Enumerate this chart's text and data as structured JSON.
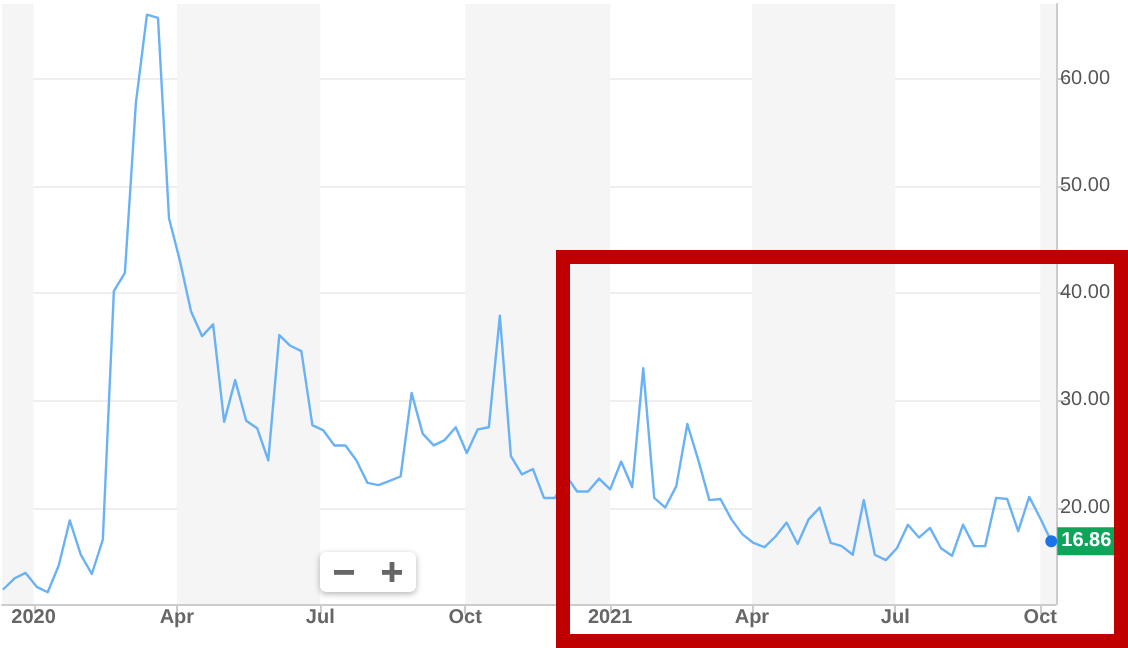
{
  "chart_data": {
    "type": "line",
    "x": [
      "2019-12-13",
      "2019-12-20",
      "2019-12-27",
      "2020-01-03",
      "2020-01-10",
      "2020-01-17",
      "2020-01-24",
      "2020-01-31",
      "2020-02-07",
      "2020-02-14",
      "2020-02-21",
      "2020-02-28",
      "2020-03-06",
      "2020-03-13",
      "2020-03-20",
      "2020-03-27",
      "2020-04-03",
      "2020-04-10",
      "2020-04-17",
      "2020-04-24",
      "2020-05-01",
      "2020-05-08",
      "2020-05-15",
      "2020-05-22",
      "2020-05-29",
      "2020-06-05",
      "2020-06-12",
      "2020-06-19",
      "2020-06-26",
      "2020-07-03",
      "2020-07-10",
      "2020-07-17",
      "2020-07-24",
      "2020-07-31",
      "2020-08-07",
      "2020-08-14",
      "2020-08-21",
      "2020-08-28",
      "2020-09-04",
      "2020-09-11",
      "2020-09-18",
      "2020-09-25",
      "2020-10-02",
      "2020-10-09",
      "2020-10-16",
      "2020-10-23",
      "2020-10-30",
      "2020-11-06",
      "2020-11-13",
      "2020-11-20",
      "2020-11-27",
      "2020-12-04",
      "2020-12-11",
      "2020-12-18",
      "2020-12-25",
      "2021-01-01",
      "2021-01-08",
      "2021-01-15",
      "2021-01-22",
      "2021-01-29",
      "2021-02-05",
      "2021-02-12",
      "2021-02-19",
      "2021-02-26",
      "2021-03-05",
      "2021-03-12",
      "2021-03-19",
      "2021-03-26",
      "2021-04-02",
      "2021-04-09",
      "2021-04-16",
      "2021-04-23",
      "2021-04-30",
      "2021-05-07",
      "2021-05-14",
      "2021-05-21",
      "2021-05-28",
      "2021-06-04",
      "2021-06-11",
      "2021-06-18",
      "2021-06-25",
      "2021-07-02",
      "2021-07-09",
      "2021-07-16",
      "2021-07-23",
      "2021-07-30",
      "2021-08-06",
      "2021-08-13",
      "2021-08-20",
      "2021-08-27",
      "2021-09-03",
      "2021-09-10",
      "2021-09-17",
      "2021-09-24",
      "2021-10-01",
      "2021-10-08"
    ],
    "series": [
      {
        "color": "#6ab2f6",
        "values": [
          12.4,
          13.4,
          13.9,
          12.6,
          12.1,
          14.6,
          18.8,
          15.6,
          13.8,
          17.0,
          40.2,
          41.9,
          57.8,
          66.0,
          65.7,
          47.0,
          43.0,
          38.3,
          36.0,
          37.1,
          28.0,
          31.9,
          28.1,
          27.4,
          24.4,
          36.1,
          35.1,
          34.6,
          27.7,
          27.2,
          25.8,
          25.8,
          24.4,
          22.3,
          22.1,
          22.5,
          22.9,
          30.7,
          26.9,
          25.8,
          26.3,
          27.5,
          25.1,
          27.3,
          27.5,
          37.9,
          24.8,
          23.1,
          23.6,
          20.9,
          20.9,
          23.0,
          21.5,
          21.5,
          22.7,
          21.7,
          24.3,
          21.9,
          33.0,
          20.9,
          20.0,
          22.0,
          27.8,
          24.4,
          20.7,
          20.8,
          18.9,
          17.5,
          16.7,
          16.3,
          17.3,
          18.6,
          16.6,
          18.9,
          20.0,
          16.7,
          16.4,
          15.6,
          20.7,
          15.6,
          15.1,
          16.2,
          18.4,
          17.2,
          18.1,
          16.2,
          15.5,
          18.4,
          16.4,
          16.4,
          20.9,
          20.8,
          17.8,
          21.0,
          19.0,
          16.86
        ]
      }
    ],
    "xlim": [
      "2019-12-12",
      "2021-10-11"
    ],
    "xticks": [
      {
        "value": "2020-01-01",
        "label": "2020"
      },
      {
        "value": "2020-04-01",
        "label": "Apr"
      },
      {
        "value": "2020-07-01",
        "label": "Jul"
      },
      {
        "value": "2020-10-01",
        "label": "Oct"
      },
      {
        "value": "2021-01-01",
        "label": "2021"
      },
      {
        "value": "2021-04-01",
        "label": "Apr"
      },
      {
        "value": "2021-07-01",
        "label": "Jul"
      },
      {
        "value": "2021-10-01",
        "label": "Oct"
      }
    ],
    "ylim": [
      11,
      67
    ],
    "yticks": [
      {
        "value": 20,
        "label": "20.00"
      },
      {
        "value": 30,
        "label": "30.00"
      },
      {
        "value": 40,
        "label": "40.00"
      },
      {
        "value": 50,
        "label": "50.00"
      },
      {
        "value": 60,
        "label": "60.00"
      }
    ],
    "bands": [
      {
        "axis": "x",
        "from": "2019-12-12",
        "to": "2020-01-01",
        "color": "#f5f5f5"
      },
      {
        "axis": "x",
        "from": "2020-04-01",
        "to": "2020-07-01",
        "color": "#f5f5f5"
      },
      {
        "axis": "x",
        "from": "2020-10-01",
        "to": "2021-01-01",
        "color": "#f5f5f5"
      },
      {
        "axis": "x",
        "from": "2021-04-01",
        "to": "2021-07-01",
        "color": "#f5f5f5"
      },
      {
        "axis": "x",
        "from": "2021-10-01",
        "to": "2021-10-11",
        "color": "#f5f5f5"
      }
    ],
    "annotations": [
      {
        "text": "16.86",
        "x": "2021-10-08",
        "y": 16.86
      }
    ],
    "grid": "y",
    "marker": "none",
    "line_style": "solid"
  }
}
